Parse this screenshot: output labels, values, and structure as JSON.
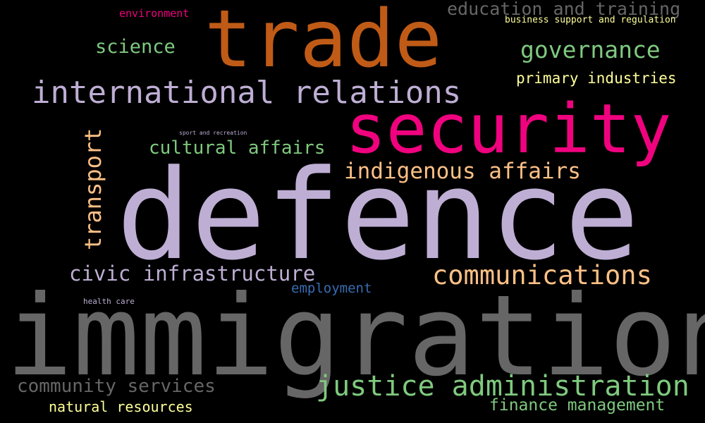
{
  "words": {
    "immigration": {
      "text": "immigration",
      "color": "#666666"
    },
    "defence": {
      "text": "defence",
      "color": "#beaed4"
    },
    "trade": {
      "text": "trade",
      "color": "#bf5b17"
    },
    "security": {
      "text": "security",
      "color": "#f0027f"
    },
    "international_relations": {
      "text": "international relations",
      "color": "#beaed4"
    },
    "justice_administration": {
      "text": "justice administration",
      "color": "#7fc97f"
    },
    "communications": {
      "text": "communications",
      "color": "#fdc086"
    },
    "indigenous_affairs": {
      "text": "indigenous affairs",
      "color": "#fdc086"
    },
    "civic_infrastructure": {
      "text": "civic infrastructure",
      "color": "#beaed4"
    },
    "governance": {
      "text": "governance",
      "color": "#7fc97f"
    },
    "transport": {
      "text": "transport",
      "color": "#fdc086"
    },
    "education_and_training": {
      "text": "education and training",
      "color": "#666666"
    },
    "cultural_affairs": {
      "text": "cultural affairs",
      "color": "#7fc97f"
    },
    "community_services": {
      "text": "community services",
      "color": "#666666"
    },
    "science": {
      "text": "science",
      "color": "#7fc97f"
    },
    "finance_management": {
      "text": "finance management",
      "color": "#7fc97f"
    },
    "primary_industries": {
      "text": "primary industries",
      "color": "#ffff99"
    },
    "natural_resources": {
      "text": "natural resources",
      "color": "#ffff99"
    },
    "employment": {
      "text": "employment",
      "color": "#386cb0"
    },
    "environment": {
      "text": "environment",
      "color": "#f0027f"
    },
    "business_support_and_regulation": {
      "text": "business support and regulation",
      "color": "#ffff99"
    },
    "health_care": {
      "text": "health care",
      "color": "#beaed4"
    },
    "sport_and_recreation": {
      "text": "sport and recreation",
      "color": "#beaed4"
    }
  },
  "background_color": "#000000"
}
